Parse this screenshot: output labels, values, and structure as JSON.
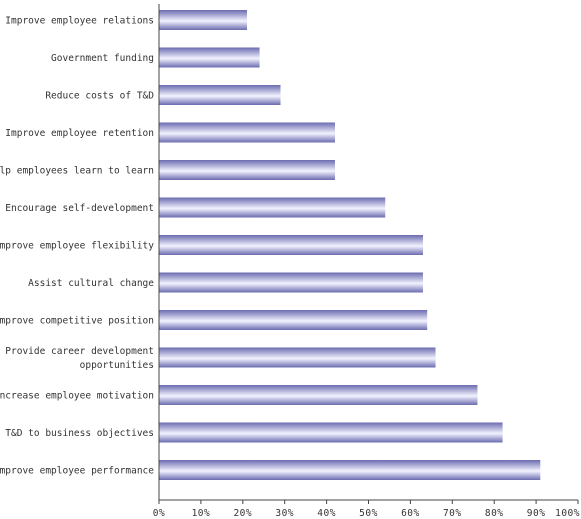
{
  "chart_data": {
    "type": "bar",
    "orientation": "horizontal",
    "title": "",
    "xlabel": "",
    "ylabel": "",
    "xlim": [
      0,
      100
    ],
    "grid": false,
    "legend": "none",
    "categories": [
      [
        "Improve employee relations"
      ],
      [
        "Government funding"
      ],
      [
        "Reduce costs of T&D"
      ],
      [
        "Improve employee retention"
      ],
      [
        "Help employees learn to learn"
      ],
      [
        "Encourage self-development"
      ],
      [
        "Improve employee flexibility"
      ],
      [
        "Assist cultural change"
      ],
      [
        "Improve competitive position"
      ],
      [
        "Provide career development",
        "opportunities"
      ],
      [
        "Increase employee motivation"
      ],
      [
        "Link T&D to business objectives"
      ],
      [
        "Improve employee performance"
      ]
    ],
    "values": [
      21,
      24,
      29,
      42,
      42,
      54,
      63,
      63,
      64,
      66,
      76,
      82,
      91
    ],
    "x_ticks": [
      "0%",
      "10%",
      "20%",
      "30%",
      "40%",
      "50%",
      "60%",
      "70%",
      "80%",
      "90%",
      "100%"
    ],
    "colors": {
      "bar_dark": "#6b6bb0",
      "bar_light": "#f2f2ff",
      "axis": "#444444"
    }
  }
}
